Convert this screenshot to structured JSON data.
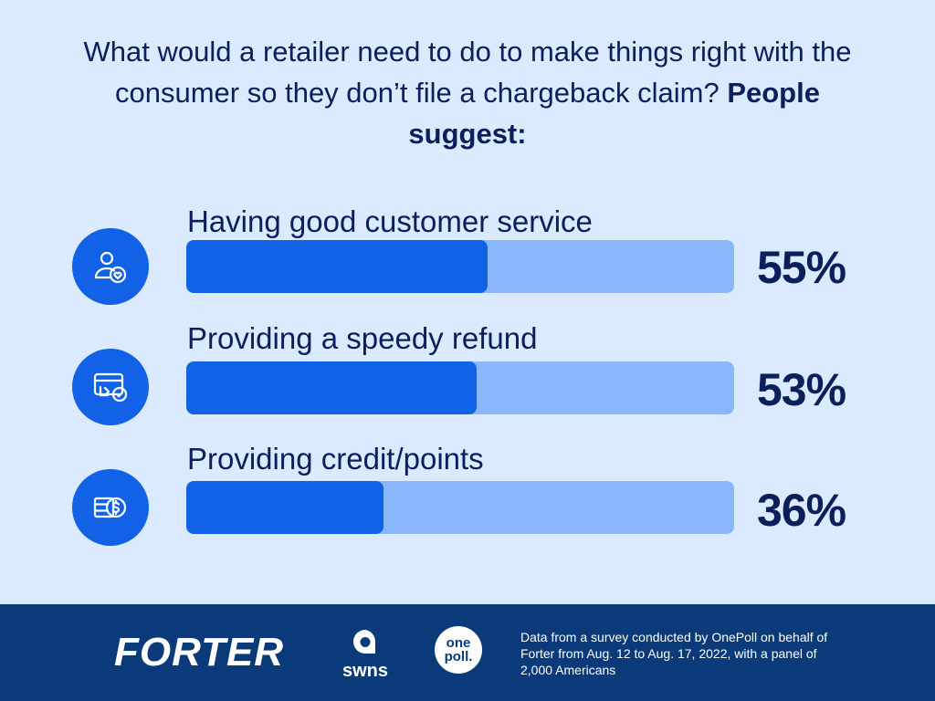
{
  "header": {
    "title_lead": "What would a retailer need to do to make things right with the consumer so they don’t file a chargeback claim?",
    "title_emphasis": "People suggest:"
  },
  "colors": {
    "background": "#dbeafe",
    "bar_fill": "#1262e8",
    "bar_track": "#8ab7fb",
    "text": "#0b1f5c",
    "footer": "#0a3a7a"
  },
  "chart_data": {
    "type": "bar",
    "orientation": "horizontal",
    "categories": [
      "Having good customer service",
      "Providing a speedy refund",
      "Providing credit/points"
    ],
    "values": [
      55,
      53,
      36
    ],
    "value_labels": [
      "55%",
      "53%",
      "36%"
    ],
    "icons": [
      "customer-heart-icon",
      "card-refund-icon",
      "credit-dollar-icon"
    ],
    "xlim": [
      0,
      100
    ],
    "title": "",
    "xlabel": "",
    "ylabel": ""
  },
  "footer": {
    "forter_logo": "FORTER",
    "swns_logo": "swns",
    "onepoll_logo_line1": "one",
    "onepoll_logo_line2": "poll.",
    "source_note": "Data from a survey conducted by OnePoll on behalf of Forter from Aug. 12 to Aug. 17, 2022, with a panel of 2,000 Americans"
  }
}
